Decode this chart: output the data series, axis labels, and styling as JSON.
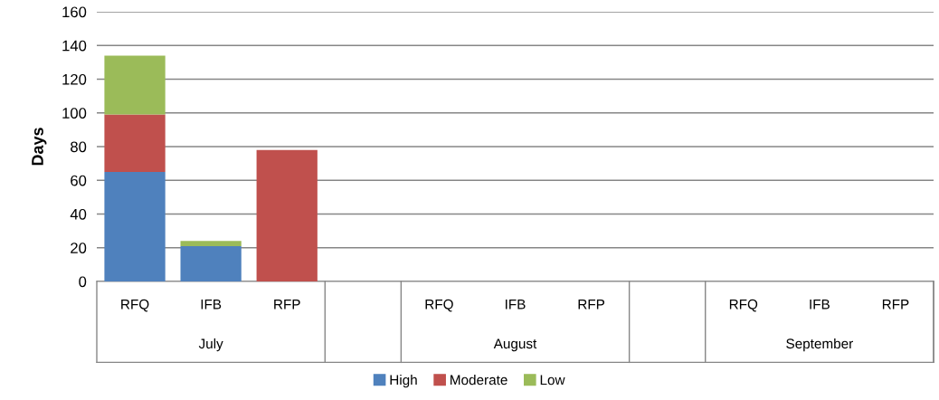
{
  "chart_data": {
    "type": "bar",
    "stacked": true,
    "ylabel": "Days",
    "categories": [
      "RFQ",
      "IFB",
      "RFP",
      null,
      "RFQ",
      "IFB",
      "RFP",
      null,
      "RFQ",
      "IFB",
      "RFP"
    ],
    "series": [
      {
        "name": "High",
        "color": "#4f81bd",
        "values": [
          65,
          21,
          null,
          null,
          null,
          null,
          null,
          null,
          null,
          null,
          null
        ]
      },
      {
        "name": "Moderate",
        "color": "#c0504d",
        "values": [
          34,
          null,
          78,
          null,
          null,
          null,
          null,
          null,
          null,
          null,
          null
        ]
      },
      {
        "name": "Low",
        "color": "#9bbb59",
        "values": [
          35,
          3,
          null,
          null,
          null,
          null,
          null,
          null,
          null,
          null,
          null
        ]
      }
    ],
    "annotations": [
      "July",
      "August",
      "September"
    ],
    "ylim": [
      0,
      160
    ],
    "yticks": [
      0,
      20,
      40,
      60,
      80,
      100,
      120,
      140,
      160
    ],
    "grid": "y",
    "legend": "bottom"
  }
}
